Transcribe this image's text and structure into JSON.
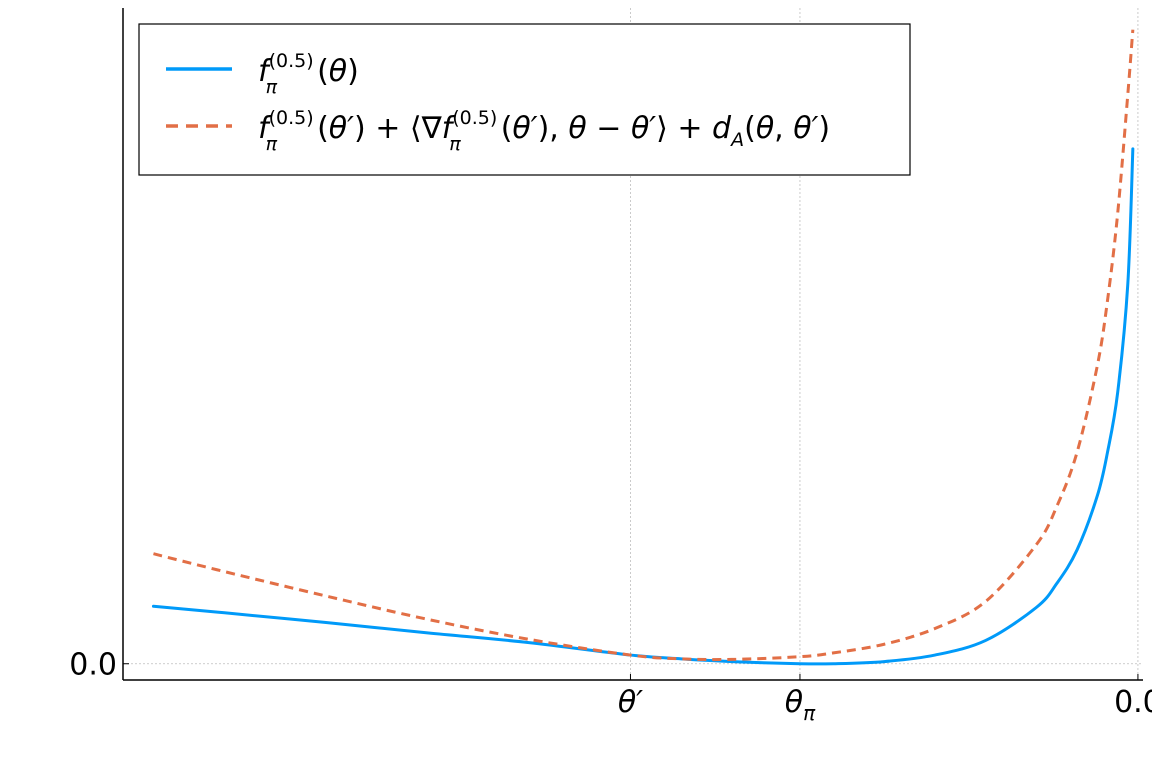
{
  "chart_data": {
    "type": "line",
    "title": "",
    "xlabel": "",
    "ylabel": "",
    "xlim": [
      -1.0,
      0.005
    ],
    "ylim": [
      -0.03,
      1.21
    ],
    "x_ticks": [
      {
        "value": -0.5,
        "label": "θ′"
      },
      {
        "value": -0.333,
        "label": "θ_π"
      },
      {
        "value": 0.0,
        "label": "0.0"
      }
    ],
    "y_ticks": [
      {
        "value": 0.0,
        "label": "0.0"
      }
    ],
    "grid": true,
    "legend_position": "top-left",
    "series": [
      {
        "name": "f_π^(0.5)(θ)",
        "color": "#009AF9",
        "style": "solid",
        "x": [
          -0.97,
          -0.9,
          -0.8,
          -0.7,
          -0.6,
          -0.5,
          -0.45,
          -0.4,
          -0.333,
          -0.3,
          -0.25,
          -0.2,
          -0.15,
          -0.1,
          -0.08,
          -0.06,
          -0.04,
          -0.03,
          -0.02,
          -0.01,
          -0.005
        ],
        "y": [
          0.106,
          0.094,
          0.076,
          0.057,
          0.039,
          0.016,
          0.009,
          0.004,
          0.0,
          0.0,
          0.004,
          0.016,
          0.043,
          0.104,
          0.148,
          0.21,
          0.31,
          0.39,
          0.5,
          0.7,
          0.95
        ]
      },
      {
        "name": "f_π^(0.5)(θ′) + ⟨∇f_π^(0.5)(θ′), θ − θ′⟩ + d_A(θ, θ′)",
        "color": "#E26F46",
        "style": "dashed",
        "x": [
          -0.97,
          -0.9,
          -0.8,
          -0.7,
          -0.6,
          -0.5,
          -0.45,
          -0.4,
          -0.333,
          -0.3,
          -0.25,
          -0.2,
          -0.15,
          -0.1,
          -0.08,
          -0.06,
          -0.04,
          -0.03,
          -0.02,
          -0.01,
          -0.005
        ],
        "y": [
          0.203,
          0.17,
          0.125,
          0.082,
          0.045,
          0.016,
          0.009,
          0.008,
          0.013,
          0.02,
          0.036,
          0.065,
          0.115,
          0.22,
          0.29,
          0.39,
          0.55,
          0.67,
          0.83,
          1.05,
          1.17
        ]
      }
    ]
  }
}
